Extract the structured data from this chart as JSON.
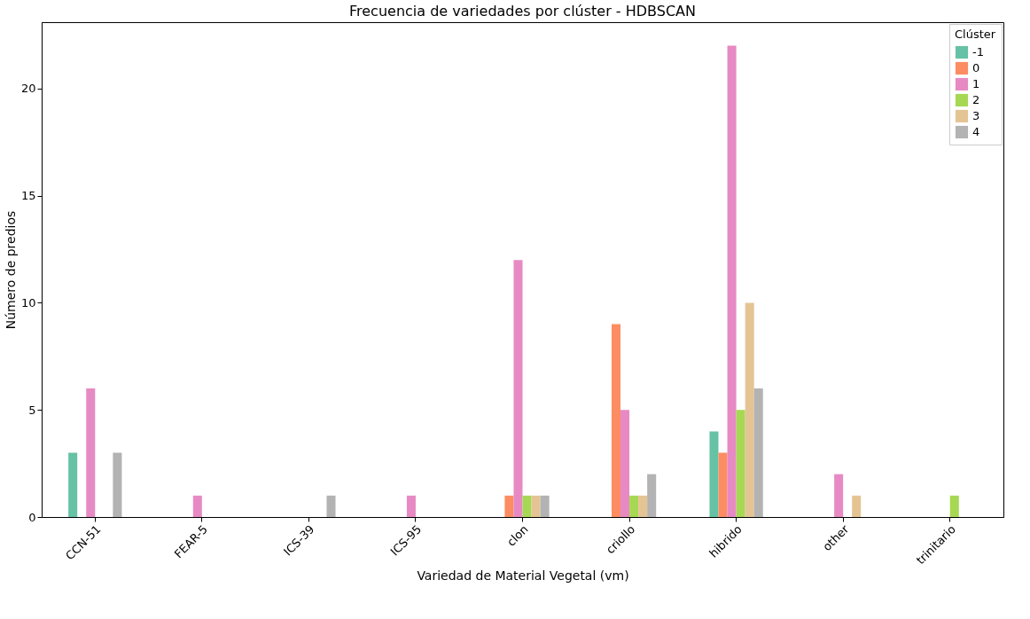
{
  "chart_data": {
    "type": "bar",
    "title": "Frecuencia de variedades por clúster - HDBSCAN",
    "xlabel": "Variedad de Material Vegetal (vm)",
    "ylabel": "Número de predios",
    "legend_title": "Clúster",
    "legend": "top right",
    "grid": false,
    "categories": [
      "CCN-51",
      "FEAR-5",
      "ICS-39",
      "ICS-95",
      "clon",
      "criollo",
      "hibrido",
      "other",
      "trinitario"
    ],
    "ylim": [
      0,
      23.1
    ],
    "yticks": [
      0,
      5,
      10,
      15,
      20
    ],
    "series": [
      {
        "name": "-1",
        "color": "#66c2a5",
        "values": [
          3,
          0,
          0,
          0,
          0,
          0,
          4,
          0,
          0
        ]
      },
      {
        "name": "0",
        "color": "#fc8d62",
        "values": [
          0,
          0,
          0,
          0,
          1,
          9,
          3,
          0,
          0
        ]
      },
      {
        "name": "1",
        "color": "#e78ac3",
        "values": [
          6,
          1,
          0,
          1,
          12,
          5,
          22,
          2,
          0
        ]
      },
      {
        "name": "2",
        "color": "#a6d854",
        "values": [
          0,
          0,
          0,
          0,
          1,
          1,
          5,
          0,
          1
        ]
      },
      {
        "name": "3",
        "color": "#e5c494",
        "values": [
          0,
          0,
          0,
          0,
          1,
          1,
          10,
          1,
          0
        ]
      },
      {
        "name": "4",
        "color": "#b3b3b3",
        "values": [
          3,
          0,
          1,
          0,
          1,
          2,
          6,
          0,
          0
        ]
      }
    ]
  }
}
